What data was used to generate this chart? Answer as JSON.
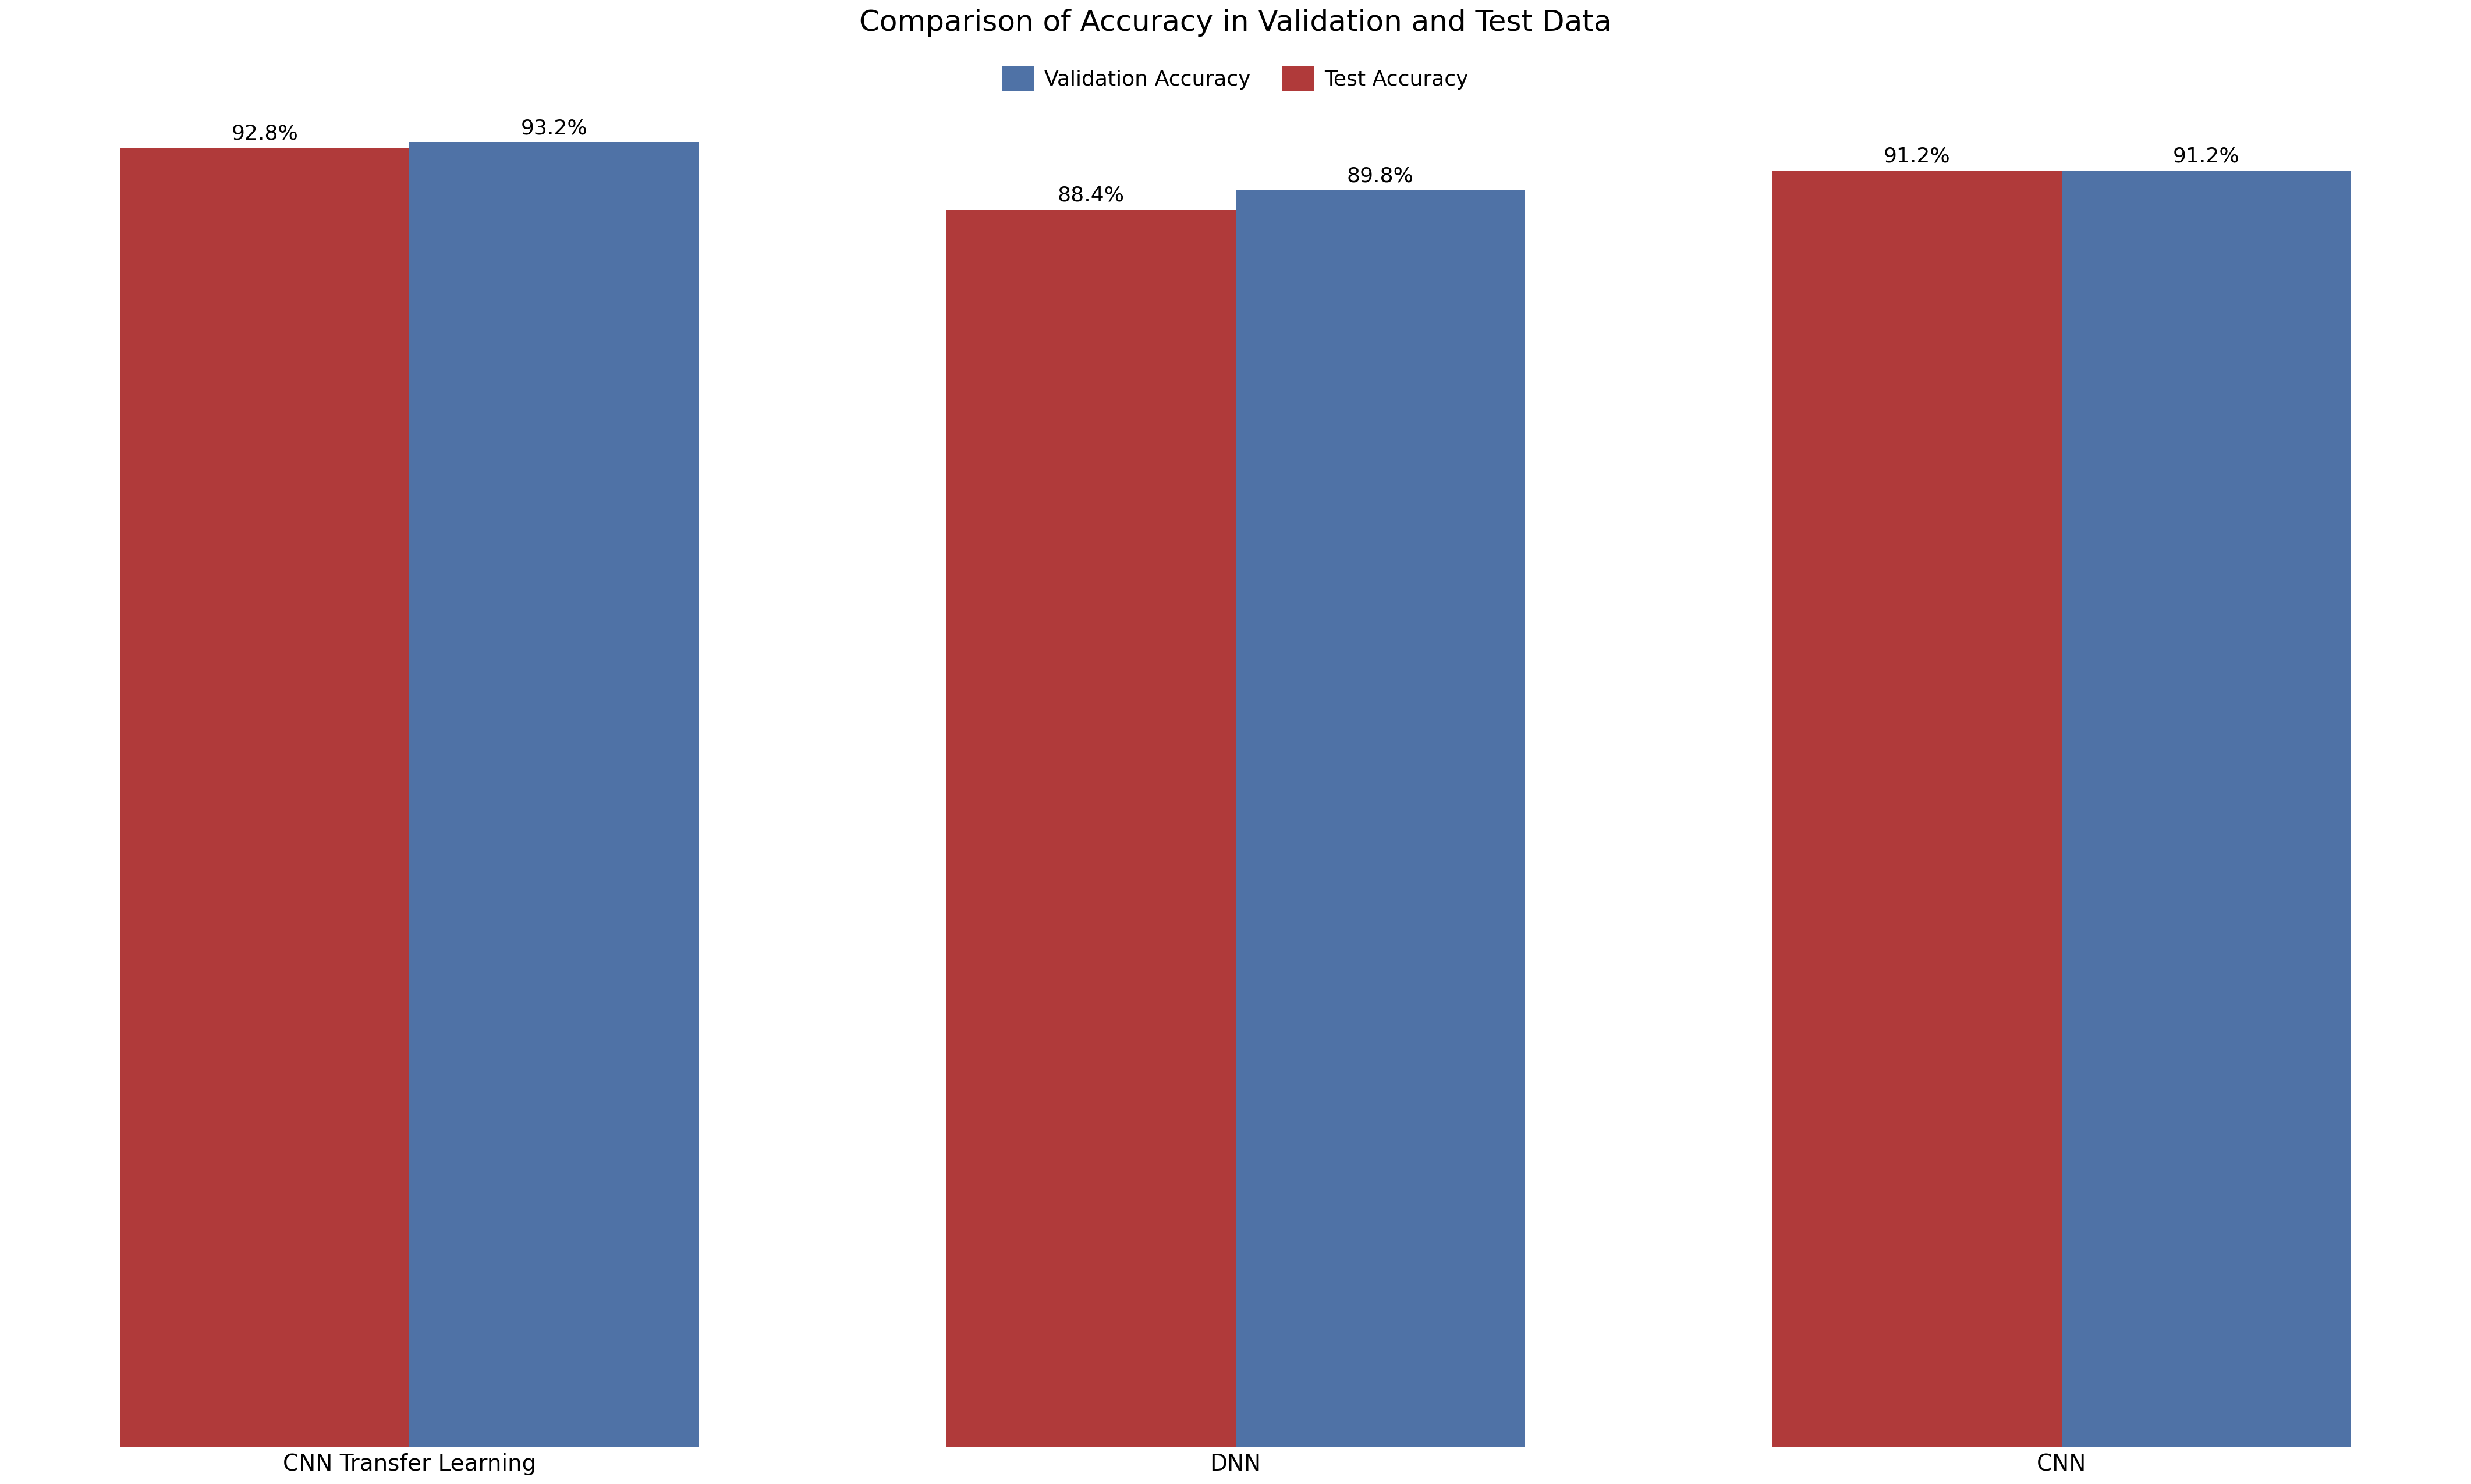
{
  "title": "Comparison of Accuracy in Validation and Test Data",
  "categories": [
    "CNN Transfer Learning",
    "DNN",
    "CNN"
  ],
  "validation_accuracy": [
    93.2,
    89.8,
    91.2
  ],
  "test_accuracy": [
    92.8,
    88.4,
    91.2
  ],
  "validation_color": "#4f72a6",
  "test_color": "#b03a3a",
  "bar_width": 0.35,
  "ylim": [
    0,
    100
  ],
  "legend_labels": [
    "Validation Accuracy",
    "Test Accuracy"
  ],
  "title_fontsize": 36,
  "tick_fontsize": 28,
  "annotation_fontsize": 26,
  "legend_fontsize": 26,
  "background_color": "#ffffff"
}
